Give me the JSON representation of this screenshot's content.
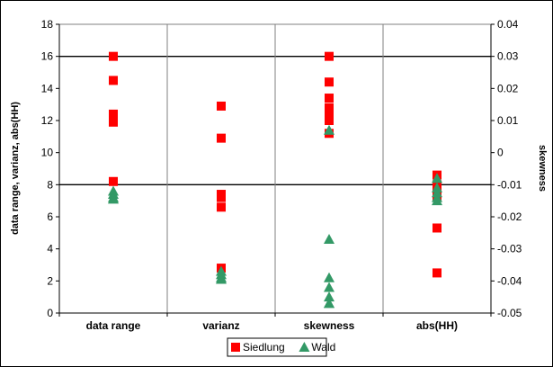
{
  "chart_data": {
    "type": "scatter",
    "categories": [
      "data range",
      "varianz",
      "skewness",
      "abs(HH)"
    ],
    "ylabel": "data range, varianz, abs(HH)",
    "y2label": "skewness",
    "ylim": [
      0,
      18
    ],
    "yticks": [
      "0",
      "2",
      "4",
      "6",
      "8",
      "10",
      "12",
      "14",
      "16",
      "18"
    ],
    "y2lim": [
      -0.05,
      0.04
    ],
    "y2ticks": [
      "-0.05",
      "-0.04",
      "-0.03",
      "-0.02",
      "-0.01",
      "0",
      "0.01",
      "0.02",
      "0.03",
      "0.04"
    ],
    "highlight_lines": [
      8,
      16
    ],
    "grid": "vertical category separators; horizontal lines at 8 and 16",
    "legend_position": "bottom-center",
    "series": [
      {
        "name": "Siedlung",
        "color": "#ff0000",
        "marker": "square",
        "points": [
          {
            "x": "data range",
            "y": 16.0
          },
          {
            "x": "data range",
            "y": 14.5
          },
          {
            "x": "data range",
            "y": 12.4
          },
          {
            "x": "data range",
            "y": 12.2
          },
          {
            "x": "data range",
            "y": 11.9
          },
          {
            "x": "data range",
            "y": 8.2
          },
          {
            "x": "varianz",
            "y": 12.9
          },
          {
            "x": "varianz",
            "y": 10.9
          },
          {
            "x": "varianz",
            "y": 7.4
          },
          {
            "x": "varianz",
            "y": 7.2
          },
          {
            "x": "varianz",
            "y": 6.6
          },
          {
            "x": "varianz",
            "y": 2.8
          },
          {
            "x": "skewness",
            "y2": 0.03
          },
          {
            "x": "skewness",
            "y2": 0.022
          },
          {
            "x": "skewness",
            "y2": 0.017
          },
          {
            "x": "skewness",
            "y2": 0.014
          },
          {
            "x": "skewness",
            "y2": 0.012
          },
          {
            "x": "skewness",
            "y2": 0.01
          },
          {
            "x": "skewness",
            "y2": 0.006
          },
          {
            "x": "abs(HH)",
            "y": 8.6
          },
          {
            "x": "abs(HH)",
            "y": 8.0
          },
          {
            "x": "abs(HH)",
            "y": 7.5
          },
          {
            "x": "abs(HH)",
            "y": 7.3
          },
          {
            "x": "abs(HH)",
            "y": 5.3
          },
          {
            "x": "abs(HH)",
            "y": 2.5
          }
        ]
      },
      {
        "name": "Wald",
        "color": "#339966",
        "marker": "triangle",
        "points": [
          {
            "x": "data range",
            "y": 7.6
          },
          {
            "x": "data range",
            "y": 7.4
          },
          {
            "x": "data range",
            "y": 7.2
          },
          {
            "x": "data range",
            "y": 7.1
          },
          {
            "x": "varianz",
            "y": 2.6
          },
          {
            "x": "varianz",
            "y": 2.4
          },
          {
            "x": "varianz",
            "y": 2.2
          },
          {
            "x": "varianz",
            "y": 2.1
          },
          {
            "x": "skewness",
            "y2": 0.007
          },
          {
            "x": "skewness",
            "y2": -0.027
          },
          {
            "x": "skewness",
            "y2": -0.039
          },
          {
            "x": "skewness",
            "y2": -0.042
          },
          {
            "x": "skewness",
            "y2": -0.045
          },
          {
            "x": "skewness",
            "y2": -0.047
          },
          {
            "x": "skewness",
            "y2": -0.047
          },
          {
            "x": "abs(HH)",
            "y": 8.4
          },
          {
            "x": "abs(HH)",
            "y": 7.8
          },
          {
            "x": "abs(HH)",
            "y": 7.5
          },
          {
            "x": "abs(HH)",
            "y": 7.2
          },
          {
            "x": "abs(HH)",
            "y": 7.0
          }
        ]
      }
    ]
  }
}
